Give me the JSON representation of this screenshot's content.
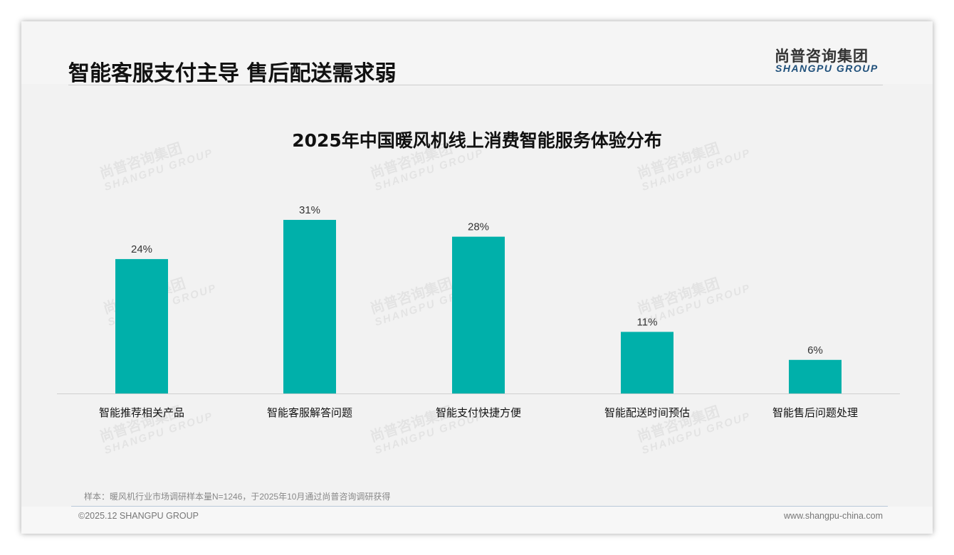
{
  "header": {
    "title": "智能客服支付主导 售后配送需求弱",
    "logo_cn": "尚普咨询集团",
    "logo_en": "SHANGPU GROUP"
  },
  "chart_data": {
    "type": "bar",
    "title": "2025年中国暖风机线上消费智能服务体验分布",
    "categories": [
      "智能推荐相关产品",
      "智能客服解答问题",
      "智能支付快捷方便",
      "智能配送时间预估",
      "智能售后问题处理"
    ],
    "values": [
      24,
      31,
      28,
      11,
      6
    ],
    "labels": [
      "24%",
      "31%",
      "28%",
      "11%",
      "6%"
    ],
    "unit": "%",
    "ylim": [
      0,
      35
    ],
    "color": "#00b0aa",
    "grid": false
  },
  "footer": {
    "note": "样本：暖风机行业市场调研样本量N=1246，于2025年10月通过尚普咨询调研获得",
    "copyright": "©2025.12 SHANGPU GROUP",
    "url": "www.shangpu-china.com"
  }
}
